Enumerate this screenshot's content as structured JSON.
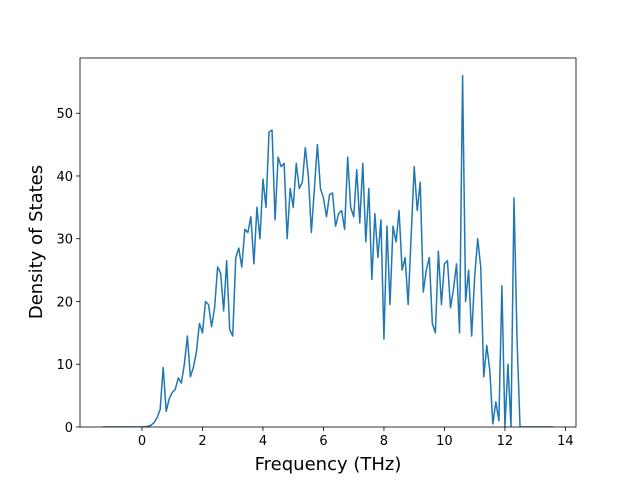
{
  "chart_data": {
    "type": "line",
    "x_label": "Frequency (THz)",
    "y_label": "Density of States",
    "color": "#1f77b4",
    "x": [
      -1.3,
      -1.2,
      -1.1,
      -1.0,
      -0.9,
      -0.8,
      -0.7,
      -0.6,
      -0.5,
      -0.4,
      -0.3,
      -0.2,
      -0.1,
      0.0,
      0.1,
      0.2,
      0.3,
      0.4,
      0.5,
      0.6,
      0.7,
      0.8,
      0.9,
      1.0,
      1.1,
      1.2,
      1.3,
      1.4,
      1.5,
      1.6,
      1.7,
      1.8,
      1.9,
      2.0,
      2.1,
      2.2,
      2.3,
      2.4,
      2.5,
      2.6,
      2.7,
      2.8,
      2.9,
      3.0,
      3.1,
      3.2,
      3.3,
      3.4,
      3.5,
      3.6,
      3.7,
      3.8,
      3.9,
      4.0,
      4.1,
      4.2,
      4.3,
      4.4,
      4.5,
      4.6,
      4.7,
      4.8,
      4.9,
      5.0,
      5.1,
      5.2,
      5.3,
      5.4,
      5.5,
      5.6,
      5.7,
      5.8,
      5.9,
      6.0,
      6.1,
      6.2,
      6.3,
      6.4,
      6.5,
      6.6,
      6.7,
      6.8,
      6.9,
      7.0,
      7.1,
      7.2,
      7.3,
      7.4,
      7.5,
      7.6,
      7.7,
      7.8,
      7.9,
      8.0,
      8.1,
      8.2,
      8.3,
      8.4,
      8.5,
      8.6,
      8.7,
      8.8,
      8.9,
      9.0,
      9.1,
      9.2,
      9.3,
      9.4,
      9.5,
      9.6,
      9.7,
      9.8,
      9.9,
      10.0,
      10.1,
      10.2,
      10.3,
      10.4,
      10.5,
      10.6,
      10.7,
      10.8,
      10.9,
      11.0,
      11.1,
      11.2,
      11.3,
      11.4,
      11.5,
      11.6,
      11.7,
      11.8,
      11.9,
      12.0,
      12.1,
      12.2,
      12.3,
      12.4,
      12.5,
      12.6,
      12.7,
      12.8,
      12.9,
      13.0,
      13.1,
      13.2,
      13.3,
      13.4,
      13.5,
      13.6
    ],
    "values": [
      0,
      0,
      0,
      0,
      0,
      0,
      0,
      0,
      0,
      0,
      0,
      0,
      0,
      0,
      0.05,
      0.1,
      0.3,
      0.7,
      1.5,
      2.8,
      9.5,
      2.5,
      4.5,
      5.5,
      6,
      7.8,
      7,
      10,
      14.5,
      8,
      9.5,
      12,
      16.5,
      15,
      20,
      19.5,
      16,
      19,
      25.5,
      24.5,
      18.5,
      26.5,
      15.5,
      14.5,
      27,
      28.5,
      25.5,
      31.5,
      31,
      33.5,
      26,
      35,
      30,
      39.5,
      35,
      47,
      47.3,
      33,
      43,
      41.5,
      42,
      30,
      38,
      35,
      42,
      38,
      39,
      44.5,
      40,
      31,
      38,
      45,
      38,
      36.5,
      33.5,
      37,
      37.3,
      32,
      34,
      34.5,
      31.5,
      43,
      35,
      33.5,
      41,
      32.5,
      42,
      29.5,
      38,
      23.5,
      34,
      27,
      33,
      14,
      32,
      19.5,
      32,
      29.5,
      34.5,
      25,
      27,
      19.5,
      30.5,
      41.5,
      34.5,
      39,
      21.5,
      25,
      27,
      16.5,
      15,
      28,
      19.5,
      26,
      26.5,
      19,
      22,
      26,
      15,
      56,
      20,
      25,
      14.5,
      24,
      30,
      25.5,
      8,
      13,
      9,
      0.5,
      4,
      1,
      22.5,
      0,
      10,
      0,
      36.5,
      14,
      0,
      0,
      0,
      0,
      0,
      0,
      0,
      0,
      0,
      0,
      0,
      0
    ],
    "xlim": [
      -2.05,
      14.35
    ],
    "ylim": [
      0,
      58.8
    ],
    "xticks": [
      0,
      2,
      4,
      6,
      8,
      10,
      12,
      14
    ],
    "yticks": [
      0,
      10,
      20,
      30,
      40,
      50
    ]
  }
}
